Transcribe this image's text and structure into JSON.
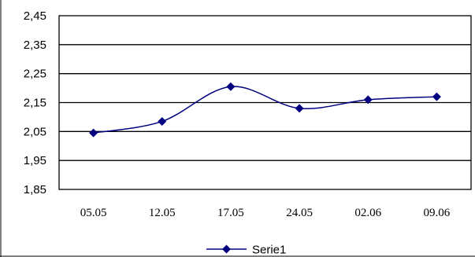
{
  "chart_data": {
    "type": "line",
    "categories": [
      "05.05",
      "12.05",
      "17.05",
      "24.05",
      "02.06",
      "09.06"
    ],
    "series": [
      {
        "name": "Serie1",
        "values": [
          2.045,
          2.085,
          2.205,
          2.13,
          2.16,
          2.17
        ]
      }
    ],
    "ylim": [
      1.85,
      2.45
    ],
    "yticks": [
      "1,85",
      "1,95",
      "2,05",
      "2,15",
      "2,25",
      "2,35",
      "2,45"
    ],
    "yticks_values": [
      1.85,
      1.95,
      2.05,
      2.15,
      2.25,
      2.35,
      2.45
    ],
    "grid": true,
    "smooth": true,
    "legend_position": "bottom",
    "colors": {
      "series": "#000080",
      "grid": "#000000",
      "plot_border": "#000000"
    }
  }
}
